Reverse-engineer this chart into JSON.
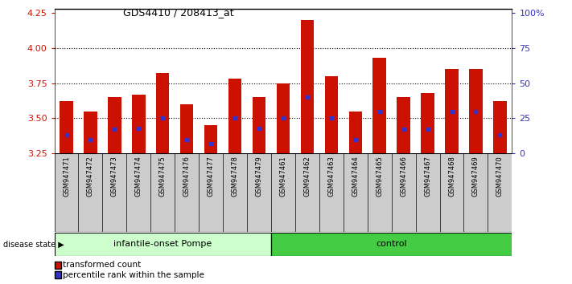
{
  "title": "GDS4410 / 208413_at",
  "samples": [
    "GSM947471",
    "GSM947472",
    "GSM947473",
    "GSM947474",
    "GSM947475",
    "GSM947476",
    "GSM947477",
    "GSM947478",
    "GSM947479",
    "GSM947461",
    "GSM947462",
    "GSM947463",
    "GSM947464",
    "GSM947465",
    "GSM947466",
    "GSM947467",
    "GSM947468",
    "GSM947469",
    "GSM947470"
  ],
  "bar_values": [
    3.62,
    3.55,
    3.65,
    3.67,
    3.82,
    3.6,
    3.45,
    3.78,
    3.65,
    3.75,
    4.2,
    3.8,
    3.55,
    3.93,
    3.65,
    3.68,
    3.85,
    3.85,
    3.62
  ],
  "blue_dot_values": [
    3.38,
    3.35,
    3.42,
    3.43,
    3.5,
    3.35,
    3.32,
    3.5,
    3.43,
    3.5,
    3.65,
    3.5,
    3.35,
    3.55,
    3.42,
    3.42,
    3.55,
    3.55,
    3.38
  ],
  "group_labels": [
    "infantile-onset Pompe",
    "control"
  ],
  "group_sizes": [
    9,
    10
  ],
  "bar_color": "#cc1100",
  "dot_color": "#3333cc",
  "y_min": 3.25,
  "y_max": 4.28,
  "y_ticks": [
    3.25,
    3.5,
    3.75,
    4.0,
    4.25
  ],
  "right_y_labels": [
    "0",
    "25",
    "50",
    "75",
    "100%"
  ],
  "right_y_vals": [
    3.25,
    3.5,
    3.75,
    4.0,
    4.25
  ],
  "tick_label_color_left": "#cc1100",
  "tick_label_color_right": "#3333cc",
  "legend_items": [
    "transformed count",
    "percentile rank within the sample"
  ],
  "bar_width": 0.55,
  "group1_color": "#ccffcc",
  "group2_color": "#44cc44",
  "xtick_bg_color": "#cccccc",
  "disease_state_label": "disease state"
}
